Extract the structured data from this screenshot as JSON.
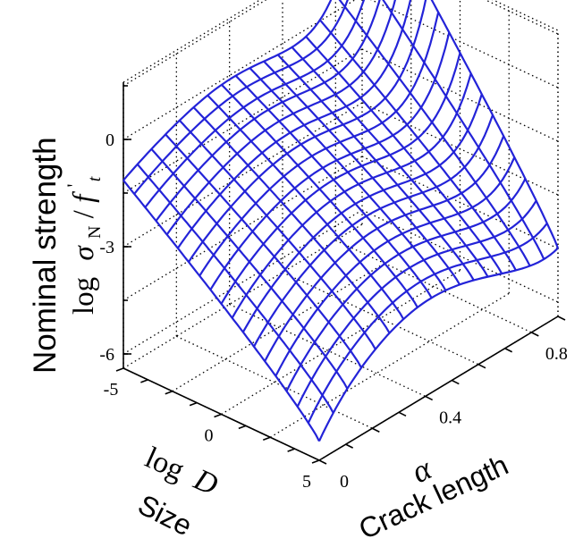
{
  "chart_data": {
    "type": "surface3d",
    "title": "",
    "z_axis": {
      "label_line1": "Nominal strength",
      "label_line2_text": "log σN/f't",
      "label_log": "log",
      "label_sigma": "σ",
      "label_sigma_sub": "N",
      "label_f": "f",
      "label_f_prime": "'",
      "label_f_sub": "t",
      "ticks": [
        "0",
        "-3",
        "-6"
      ],
      "tick_values": [
        0,
        -3,
        -6
      ],
      "range": [
        -6.4,
        1.6
      ]
    },
    "size_axis": {
      "label_line1": "log D",
      "label_log": "log",
      "label_D": "D",
      "label_line2": "Size",
      "ticks": [
        "-5",
        "0",
        "5"
      ],
      "tick_values": [
        -5,
        0,
        5
      ],
      "range": [
        -5,
        5
      ]
    },
    "crack_axis": {
      "label_symbol": "α",
      "label_line2": "Crack length",
      "ticks": [
        "0",
        "0.4",
        "0.8"
      ],
      "tick_values": [
        0,
        0.4,
        0.8
      ],
      "range": [
        0,
        0.9
      ]
    },
    "grid": true,
    "mesh_color": "#2323d8",
    "mesh": {
      "n_size": 19,
      "n_crack": 18,
      "description_of_values": "log nominal strength over log size and crack length"
    }
  }
}
